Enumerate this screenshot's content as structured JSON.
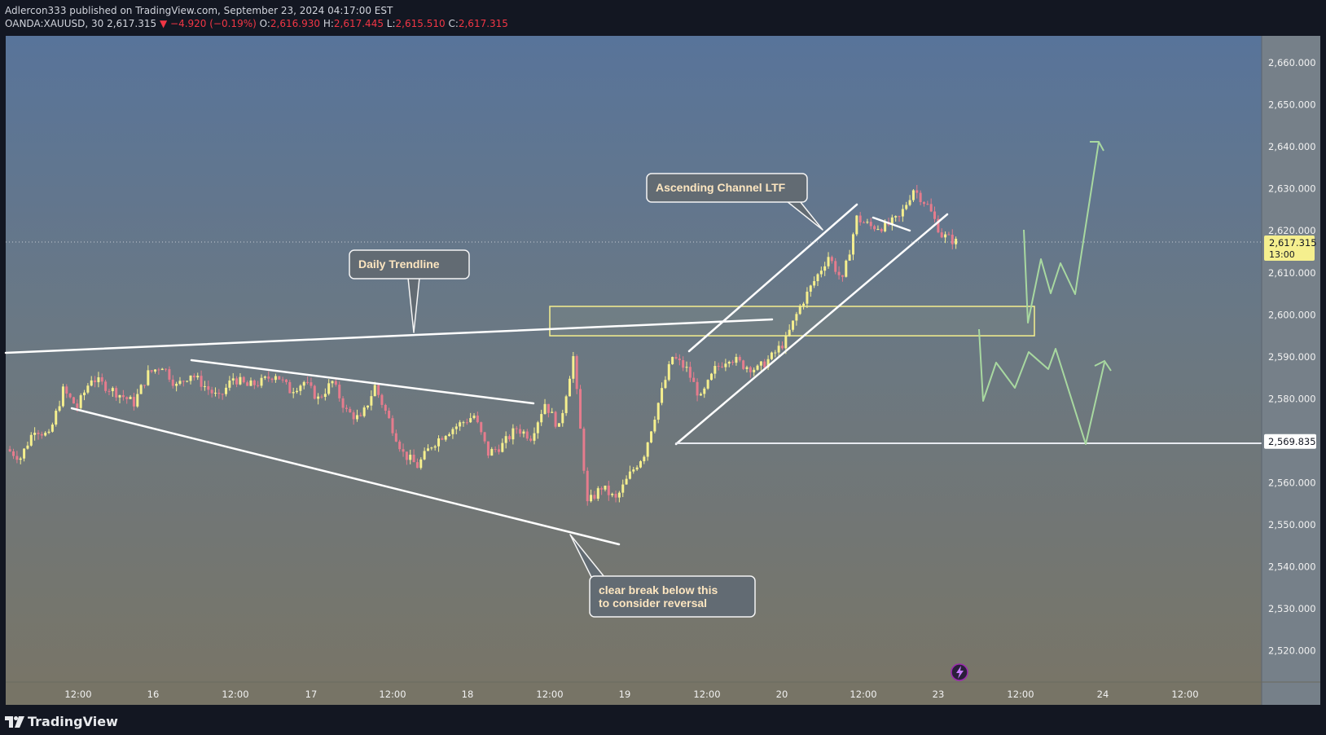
{
  "header": {
    "published": "Adlercon333 published on TradingView.com, September 23, 2024 04:17:00 EST",
    "symbol": "OANDA:XAUUSD, 30",
    "price": "2,617.315",
    "change": "▼ −4.920 (−0.19%)",
    "o_label": "O:",
    "o": "2,616.930",
    "h_label": "H:",
    "h": "2,617.445",
    "l_label": "L:",
    "l": "2,615.510",
    "c_label": "C:",
    "c": "2,617.315"
  },
  "colors": {
    "up": "#f5ef8e",
    "down": "#e57c8d",
    "trendline": "#ffffff",
    "zone": "#f5ef8e",
    "projection": "#a8d8a0",
    "price_label_bg": "#f5ef8e",
    "level_label_bg": "#ffffff"
  },
  "chart_data": {
    "type": "candlestick",
    "symbol": "OANDA:XAUUSD",
    "interval": "30",
    "ylim": [
      2512,
      2662
    ],
    "y_ticks": [
      2520,
      2530,
      2540,
      2550,
      2560,
      2570,
      2580,
      2590,
      2600,
      2610,
      2620,
      2630,
      2640,
      2650,
      2660
    ],
    "y_tick_labels": [
      "2,520.000",
      "2,530.000",
      "2,540.000",
      "2,550.000",
      "2,560.000",
      "2,570.000",
      "2,580.000",
      "2,590.000",
      "2,600.000",
      "2,610.000",
      "2,620.000",
      "2,630.000",
      "2,640.000",
      "2,650.000",
      "2,660.000"
    ],
    "x_tick_labels": [
      "12:00",
      "16",
      "12:00",
      "17",
      "12:00",
      "18",
      "12:00",
      "19",
      "12:00",
      "20",
      "12:00",
      "23",
      "12:00",
      "24",
      "12:00"
    ],
    "current_price": {
      "value": 2617.315,
      "label": "2,617.315",
      "countdown": "13:00"
    },
    "level_line": {
      "value": 2569.835,
      "label": "2,569.835"
    },
    "price_path": [
      [
        0,
        2568
      ],
      [
        1,
        2566
      ],
      [
        2,
        2573
      ],
      [
        3,
        2571
      ],
      [
        4,
        2582
      ],
      [
        5,
        2578
      ],
      [
        6,
        2585
      ],
      [
        7,
        2583
      ],
      [
        8,
        2581
      ],
      [
        9,
        2579
      ],
      [
        10,
        2586
      ],
      [
        11,
        2588
      ],
      [
        12,
        2583
      ],
      [
        13,
        2586
      ],
      [
        14,
        2583
      ],
      [
        15,
        2580
      ],
      [
        16,
        2585
      ],
      [
        17,
        2583
      ],
      [
        18,
        2584
      ],
      [
        19,
        2586
      ],
      [
        20,
        2582
      ],
      [
        21,
        2584
      ],
      [
        22,
        2580
      ],
      [
        23,
        2584
      ],
      [
        24,
        2577
      ],
      [
        25,
        2575
      ],
      [
        26,
        2583
      ],
      [
        27,
        2575
      ],
      [
        28,
        2567
      ],
      [
        29,
        2564
      ],
      [
        30,
        2569
      ],
      [
        31,
        2572
      ],
      [
        32,
        2574
      ],
      [
        33,
        2576
      ],
      [
        34,
        2567
      ],
      [
        35,
        2569
      ],
      [
        36,
        2573
      ],
      [
        37,
        2571
      ],
      [
        38,
        2579
      ],
      [
        39,
        2573
      ],
      [
        40,
        2590
      ],
      [
        41,
        2555
      ],
      [
        42,
        2559
      ],
      [
        43,
        2556
      ],
      [
        44,
        2562
      ],
      [
        45,
        2567
      ],
      [
        46,
        2579
      ],
      [
        47,
        2590
      ],
      [
        48,
        2587
      ],
      [
        49,
        2580
      ],
      [
        50,
        2587
      ],
      [
        51,
        2590
      ],
      [
        52,
        2588
      ],
      [
        53,
        2587
      ],
      [
        54,
        2590
      ],
      [
        55,
        2594
      ],
      [
        56,
        2602
      ],
      [
        57,
        2608
      ],
      [
        58,
        2614
      ],
      [
        59,
        2608
      ],
      [
        60,
        2623
      ],
      [
        61,
        2621
      ],
      [
        62,
        2621
      ],
      [
        63,
        2623
      ],
      [
        64,
        2630
      ],
      [
        65,
        2626
      ],
      [
        66,
        2619
      ],
      [
        67,
        2617.315
      ]
    ],
    "annotations": [
      {
        "text": "Daily Trendline"
      },
      {
        "text": "Ascending Channel LTF"
      },
      {
        "text_lines": [
          "clear break below this",
          "to consider reversal"
        ]
      }
    ],
    "zone": {
      "from": 2595,
      "to": 2602
    }
  },
  "branding": {
    "name": "TradingView"
  }
}
